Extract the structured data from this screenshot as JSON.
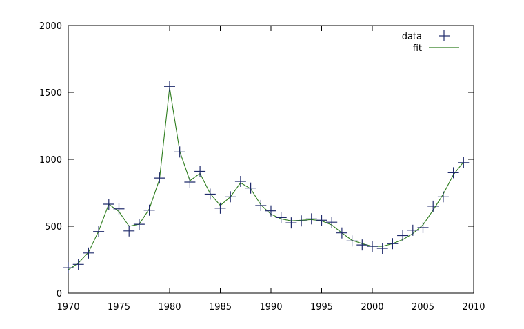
{
  "chart_data": {
    "type": "line",
    "title": "",
    "xlabel": "",
    "ylabel": "",
    "xlim": [
      1970,
      2010
    ],
    "ylim": [
      0,
      2000
    ],
    "x_ticks": [
      1970,
      1975,
      1980,
      1985,
      1990,
      1995,
      2000,
      2005,
      2010
    ],
    "y_ticks": [
      0,
      500,
      1000,
      1500,
      2000
    ],
    "grid": false,
    "legend_position": "top-right",
    "series": [
      {
        "name": "data",
        "kind": "points",
        "marker": "plus",
        "color": "#1f2a6b",
        "x": [
          1970,
          1971,
          1972,
          1973,
          1974,
          1975,
          1976,
          1977,
          1978,
          1979,
          1980,
          1981,
          1982,
          1983,
          1984,
          1985,
          1986,
          1987,
          1988,
          1989,
          1990,
          1991,
          1992,
          1993,
          1994,
          1995,
          1996,
          1997,
          1998,
          1999,
          2000,
          2001,
          2002,
          2003,
          2004,
          2005,
          2006,
          2007,
          2008,
          2009
        ],
        "y": [
          190,
          215,
          300,
          460,
          665,
          630,
          465,
          515,
          620,
          860,
          1545,
          1055,
          830,
          910,
          740,
          635,
          720,
          835,
          785,
          655,
          615,
          565,
          525,
          540,
          555,
          545,
          530,
          450,
          390,
          360,
          350,
          335,
          370,
          430,
          470,
          490,
          650,
          720,
          900,
          975
        ]
      },
      {
        "name": "fit",
        "kind": "line",
        "color": "#2e7d1e",
        "x": [
          1970,
          1971,
          1972,
          1973,
          1974,
          1975,
          1976,
          1977,
          1978,
          1979,
          1980,
          1981,
          1982,
          1983,
          1984,
          1985,
          1986,
          1987,
          1988,
          1989,
          1990,
          1991,
          1992,
          1993,
          1994,
          1995,
          1996,
          1997,
          1998,
          1999,
          2000,
          2001,
          2002,
          2003,
          2004,
          2005,
          2006,
          2007,
          2008,
          2009
        ],
        "y": [
          175,
          225,
          305,
          465,
          665,
          610,
          500,
          515,
          630,
          850,
          1535,
          1060,
          840,
          895,
          745,
          655,
          720,
          825,
          780,
          660,
          590,
          555,
          540,
          545,
          550,
          540,
          510,
          450,
          395,
          370,
          350,
          350,
          370,
          400,
          445,
          510,
          620,
          740,
          885,
          980
        ]
      }
    ]
  }
}
